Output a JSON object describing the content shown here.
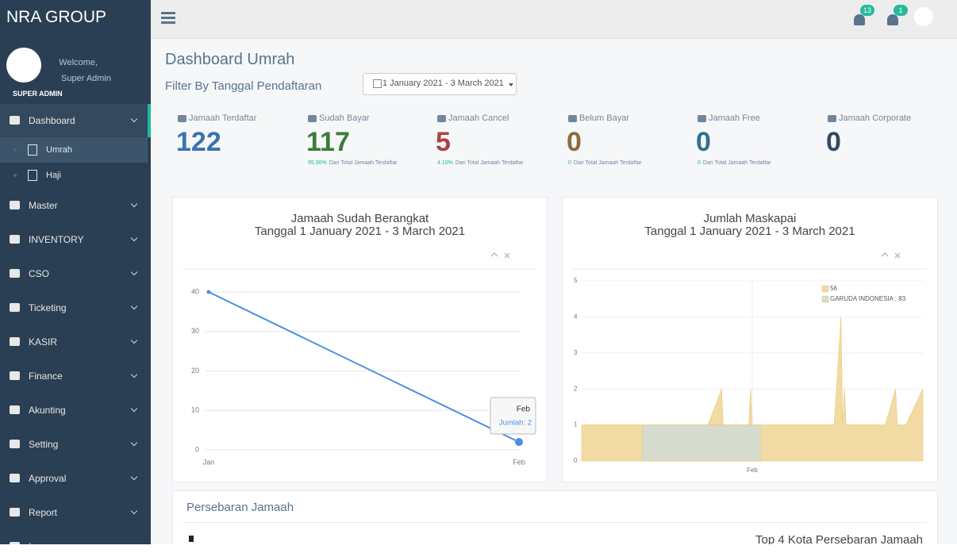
{
  "sidebar": {
    "brand": "NRA GROUP",
    "welcome": "Welcome,",
    "user": "Super Admin",
    "role": "SUPER ADMIN",
    "menu": [
      {
        "label": "Dashboard",
        "children": [
          "Umrah",
          "Haji"
        ]
      },
      {
        "label": "Master"
      },
      {
        "label": "INVENTORY"
      },
      {
        "label": "CSO"
      },
      {
        "label": "Ticketing"
      },
      {
        "label": "KASIR"
      },
      {
        "label": "Finance"
      },
      {
        "label": "Akunting"
      },
      {
        "label": "Setting"
      },
      {
        "label": "Approval"
      },
      {
        "label": "Report"
      },
      {
        "label": "Log"
      }
    ]
  },
  "topbar": {
    "badges": [
      13,
      1
    ]
  },
  "header": {
    "title": "Dashboard Umrah",
    "filter_label": "Filter By Tanggal Pendaftaran",
    "date_range": "1 January 2021 - 3 March 2021"
  },
  "stats": [
    {
      "label": "Jamaah Terdaftar",
      "value": 122,
      "color": "#3a73b0"
    },
    {
      "label": "Sudah Bayar",
      "value": 117,
      "color": "#3c7a3c",
      "note_pct": "95.90%",
      "note_text": "Dari Total Jamaah Terdaftar"
    },
    {
      "label": "Jamaah Cancel",
      "value": 5,
      "color": "#a94442",
      "note_pct": "4.10%",
      "note_text": "Dari Total Jamaah Terdaftar"
    },
    {
      "label": "Belum Bayar",
      "value": 0,
      "color": "#8a6d3b",
      "note_pct": "0",
      "note_text": "Dari Total Jamaah Terdaftar"
    },
    {
      "label": "Jamaah Free",
      "value": 0,
      "color": "#31708f",
      "note_pct": "0",
      "note_text": "Dari Total Jamaah Terdaftar"
    },
    {
      "label": "Jamaah Corporate",
      "value": 0,
      "color": "#34495e"
    }
  ],
  "chart_data": [
    {
      "type": "line",
      "title": "Jamaah Sudah Berangkat",
      "subtitle": "Tanggal 1 January 2021 - 3 March 2021",
      "categories": [
        "Jan",
        "Feb"
      ],
      "values": [
        40,
        2
      ],
      "color": "#4a90e2",
      "ylim": [
        0,
        40
      ],
      "yticks": [
        0,
        10,
        20,
        30,
        40
      ],
      "grid": true,
      "tooltip": {
        "title": "Feb",
        "text": "Jumlah: 2"
      }
    },
    {
      "type": "area",
      "title": "Jumlah Maskapai",
      "subtitle": "Tanggal 1 January 2021 - 3 March 2021",
      "xlim": [
        0,
        100
      ],
      "xticks": [
        {
          "value": 50,
          "label": "Feb"
        }
      ],
      "ylim": [
        0,
        5
      ],
      "yticks": [
        0,
        1,
        2,
        3,
        4,
        5
      ],
      "grid": true,
      "legend": "top-right",
      "series": [
        {
          "name": "56",
          "color": "#f2dba3",
          "x": [
            0,
            37,
            41,
            41.5,
            49,
            49.5,
            50,
            74,
            76,
            76.5,
            77,
            77.5,
            89,
            92,
            92.5,
            95,
            100
          ],
          "values": [
            1,
            1,
            2,
            1,
            1,
            2,
            1,
            1,
            4,
            1,
            2,
            1,
            1,
            2,
            1,
            1,
            2
          ]
        },
        {
          "name": "GARUDA INDONESIA : 83",
          "color": "#d5dccd",
          "x": [
            17.7,
            52.6
          ],
          "values": [
            1,
            1
          ]
        }
      ]
    }
  ],
  "panel": {
    "title": "Persebaran Jamaah",
    "subtitle": "Top 4 Kota Persebaran Jamaah"
  }
}
